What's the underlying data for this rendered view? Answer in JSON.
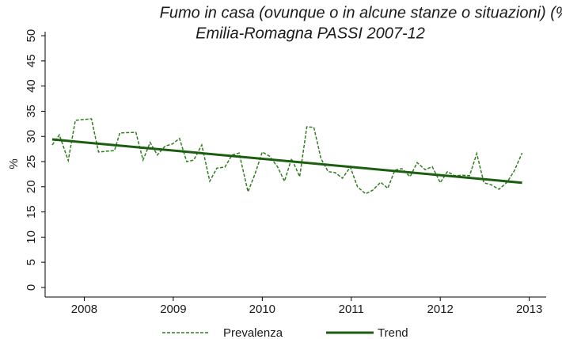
{
  "chart_data": {
    "type": "line",
    "title": "Fumo in casa (ovunque o in alcune stanze o situazioni) (%)",
    "subtitle": "Emilia-Romagna PASSI 2007-12",
    "y_label": "%",
    "xlim": [
      2007.56,
      2013.19
    ],
    "xticks": [
      2008,
      2009,
      2010,
      2011,
      2012,
      2013
    ],
    "ylim": [
      -1.9,
      50.8
    ],
    "yticks": [
      0,
      5,
      10,
      15,
      20,
      25,
      30,
      35,
      40,
      45,
      50
    ],
    "grid": false,
    "legend": "bottom",
    "series": [
      {
        "name": "Prevalenza",
        "color": "#2f7d1f",
        "style": "dashed",
        "x": [
          2007.64,
          2007.72,
          2007.82,
          2007.9,
          2008.08,
          2008.16,
          2008.34,
          2008.4,
          2008.58,
          2008.66,
          2008.74,
          2008.82,
          2008.91,
          2008.99,
          2009.07,
          2009.15,
          2009.23,
          2009.32,
          2009.41,
          2009.49,
          2009.58,
          2009.66,
          2009.74,
          2009.84,
          2009.92,
          2010.0,
          2010.08,
          2010.17,
          2010.25,
          2010.33,
          2010.42,
          2010.5,
          2010.58,
          2010.66,
          2010.74,
          2010.82,
          2010.9,
          2010.99,
          2011.07,
          2011.16,
          2011.24,
          2011.33,
          2011.41,
          2011.49,
          2011.57,
          2011.66,
          2011.74,
          2011.83,
          2011.91,
          2012.0,
          2012.08,
          2012.16,
          2012.25,
          2012.33,
          2012.41,
          2012.49,
          2012.57,
          2012.66,
          2012.75,
          2012.83,
          2012.92
        ],
        "values": [
          28.3,
          30.3,
          25.2,
          33.2,
          33.5,
          26.9,
          27.2,
          30.7,
          30.8,
          25.3,
          28.8,
          26.3,
          28.1,
          28.5,
          29.6,
          25.0,
          25.3,
          28.3,
          21.1,
          23.7,
          23.9,
          26.3,
          26.7,
          19.0,
          22.6,
          26.9,
          26.1,
          24.0,
          21.1,
          25.6,
          22.0,
          31.9,
          31.8,
          25.6,
          23.0,
          22.8,
          21.7,
          23.9,
          20.0,
          18.6,
          19.3,
          20.9,
          19.7,
          23.3,
          23.6,
          22.0,
          24.8,
          23.4,
          24.0,
          20.8,
          23.0,
          22.2,
          22.3,
          22.2,
          26.6,
          20.8,
          20.4,
          19.5,
          20.9,
          23.1,
          26.7
        ]
      },
      {
        "name": "Trend",
        "color": "#1b5e10",
        "style": "solid",
        "x": [
          2007.64,
          2012.92
        ],
        "values": [
          29.4,
          20.8
        ]
      }
    ]
  }
}
